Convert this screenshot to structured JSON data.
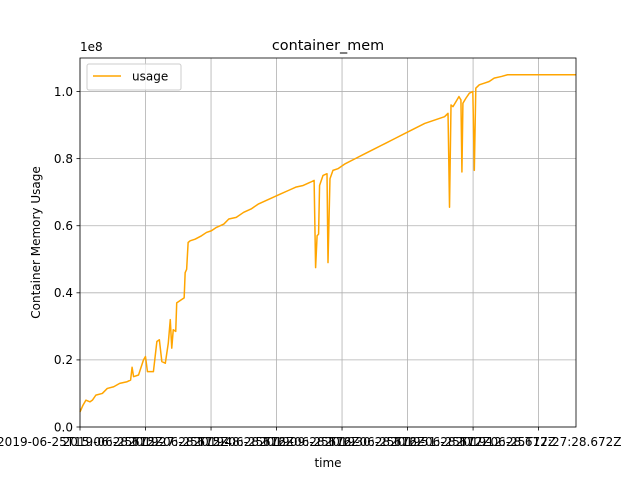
{
  "chart_data": {
    "type": "line",
    "title": "container_mem",
    "xlabel": "time",
    "ylabel": "Container Memory Usage",
    "y_exponent_label": "1e8",
    "y_scale_factor": 100000000,
    "ylim": [
      0,
      110000000
    ],
    "xlim": [
      0,
      1
    ],
    "grid": true,
    "legend_position": "upper left",
    "x_tick_labels": [
      "2019-06-25T15:06:28.672Z",
      "2019-06-25T15:27:28.672Z",
      "2019-06-25T15:48:28.672Z",
      "2019-06-25T16:09:28.672Z",
      "2019-06-25T16:30:28.672Z",
      "2019-06-25T16:51:28.672Z",
      "2019-06-25T17:12:28.672Z",
      "2019-06-25T17:27:28.672Z"
    ],
    "x_tick_positions": [
      0,
      0.1321,
      0.2642,
      0.3962,
      0.5283,
      0.6604,
      0.7925,
      0.9245
    ],
    "y_ticks": [
      0,
      20000000,
      40000000,
      60000000,
      80000000,
      100000000
    ],
    "y_tick_labels": [
      "0.0",
      "0.2",
      "0.4",
      "0.6",
      "0.8",
      "1.0"
    ],
    "series": [
      {
        "name": "usage",
        "color": "#ffa500",
        "points": [
          [
            0.0,
            4500000.0
          ],
          [
            0.006,
            6500000.0
          ],
          [
            0.012,
            8000000.0
          ],
          [
            0.02,
            7500000.0
          ],
          [
            0.025,
            8000000.0
          ],
          [
            0.032,
            9500000.0
          ],
          [
            0.045,
            10000000.0
          ],
          [
            0.055,
            11500000.0
          ],
          [
            0.068,
            12000000.0
          ],
          [
            0.08,
            13000000.0
          ],
          [
            0.095,
            13500000.0
          ],
          [
            0.102,
            14000000.0
          ],
          [
            0.105,
            17800000.0
          ],
          [
            0.108,
            15000000.0
          ],
          [
            0.118,
            15500000.0
          ],
          [
            0.128,
            20000000.0
          ],
          [
            0.132,
            21000000.0
          ],
          [
            0.136,
            16500000.0
          ],
          [
            0.148,
            16500000.0
          ],
          [
            0.155,
            25500000.0
          ],
          [
            0.16,
            26000000.0
          ],
          [
            0.165,
            19500000.0
          ],
          [
            0.172,
            19000000.0
          ],
          [
            0.178,
            25000000.0
          ],
          [
            0.182,
            32000000.0
          ],
          [
            0.185,
            23500000.0
          ],
          [
            0.188,
            29000000.0
          ],
          [
            0.193,
            28500000.0
          ],
          [
            0.195,
            37000000.0
          ],
          [
            0.205,
            38000000.0
          ],
          [
            0.21,
            38500000.0
          ],
          [
            0.212,
            46000000.0
          ],
          [
            0.215,
            47000000.0
          ],
          [
            0.218,
            55000000.0
          ],
          [
            0.222,
            55500000.0
          ],
          [
            0.232,
            56000000.0
          ],
          [
            0.245,
            57000000.0
          ],
          [
            0.255,
            58000000.0
          ],
          [
            0.265,
            58500000.0
          ],
          [
            0.275,
            59500000.0
          ],
          [
            0.29,
            60500000.0
          ],
          [
            0.3,
            62000000.0
          ],
          [
            0.315,
            62500000.0
          ],
          [
            0.33,
            64000000.0
          ],
          [
            0.345,
            65000000.0
          ],
          [
            0.36,
            66500000.0
          ],
          [
            0.375,
            67500000.0
          ],
          [
            0.39,
            68500000.0
          ],
          [
            0.405,
            69500000.0
          ],
          [
            0.42,
            70500000.0
          ],
          [
            0.435,
            71500000.0
          ],
          [
            0.45,
            72000000.0
          ],
          [
            0.465,
            73000000.0
          ],
          [
            0.472,
            73500000.0
          ],
          [
            0.475,
            47500000.0
          ],
          [
            0.478,
            57000000.0
          ],
          [
            0.481,
            57500000.0
          ],
          [
            0.483,
            72000000.0
          ],
          [
            0.49,
            75000000.0
          ],
          [
            0.498,
            75500000.0
          ],
          [
            0.5,
            49000000.0
          ],
          [
            0.504,
            74000000.0
          ],
          [
            0.51,
            76500000.0
          ],
          [
            0.52,
            77000000.0
          ],
          [
            0.535,
            78500000.0
          ],
          [
            0.555,
            80000000.0
          ],
          [
            0.575,
            81500000.0
          ],
          [
            0.595,
            83000000.0
          ],
          [
            0.615,
            84500000.0
          ],
          [
            0.635,
            86000000.0
          ],
          [
            0.655,
            87500000.0
          ],
          [
            0.675,
            89000000.0
          ],
          [
            0.695,
            90500000.0
          ],
          [
            0.715,
            91500000.0
          ],
          [
            0.735,
            92500000.0
          ],
          [
            0.742,
            93500000.0
          ],
          [
            0.745,
            65500000.0
          ],
          [
            0.748,
            96000000.0
          ],
          [
            0.752,
            95500000.0
          ],
          [
            0.758,
            97000000.0
          ],
          [
            0.764,
            98500000.0
          ],
          [
            0.768,
            97500000.0
          ],
          [
            0.77,
            76000000.0
          ],
          [
            0.772,
            96500000.0
          ],
          [
            0.778,
            98000000.0
          ],
          [
            0.785,
            99500000.0
          ],
          [
            0.792,
            100000000.0
          ],
          [
            0.795,
            76500000.0
          ],
          [
            0.798,
            101000000.0
          ],
          [
            0.805,
            102000000.0
          ],
          [
            0.815,
            102500000.0
          ],
          [
            0.825,
            103000000.0
          ],
          [
            0.835,
            104000000.0
          ],
          [
            0.85,
            104500000.0
          ],
          [
            0.862,
            105000000.0
          ],
          [
            0.9,
            105000000.0
          ],
          [
            1.0,
            105000000.0
          ]
        ]
      }
    ]
  }
}
